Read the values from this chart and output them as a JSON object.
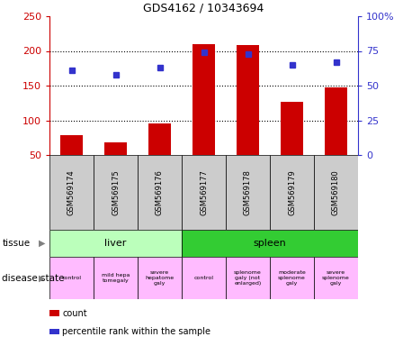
{
  "title": "GDS4162 / 10343694",
  "samples": [
    "GSM569174",
    "GSM569175",
    "GSM569176",
    "GSM569177",
    "GSM569178",
    "GSM569179",
    "GSM569180"
  ],
  "counts": [
    78,
    68,
    95,
    210,
    208,
    126,
    148
  ],
  "percentile_ranks": [
    61,
    58,
    63,
    74,
    73,
    65,
    67
  ],
  "ylim_left": [
    50,
    250
  ],
  "ylim_right": [
    0,
    100
  ],
  "yticks_left": [
    50,
    100,
    150,
    200,
    250
  ],
  "yticks_right": [
    0,
    25,
    50,
    75,
    100
  ],
  "bar_color": "#cc0000",
  "dot_color": "#3333cc",
  "tissue_groups": [
    {
      "label": "liver",
      "start": 0,
      "end": 3,
      "color": "#bbffbb"
    },
    {
      "label": "spleen",
      "start": 3,
      "end": 7,
      "color": "#33cc33"
    }
  ],
  "disease_states": [
    {
      "label": "control",
      "start": 0,
      "end": 1,
      "color": "#ffbbff"
    },
    {
      "label": "mild hepa\ntomegaly",
      "start": 1,
      "end": 2,
      "color": "#ffbbff"
    },
    {
      "label": "severe\nhepatome\ngaly",
      "start": 2,
      "end": 3,
      "color": "#ffbbff"
    },
    {
      "label": "control",
      "start": 3,
      "end": 4,
      "color": "#ffbbff"
    },
    {
      "label": "splenome\ngaly (not\nenlarged)",
      "start": 4,
      "end": 5,
      "color": "#ffbbff"
    },
    {
      "label": "moderate\nsplenome\ngaly",
      "start": 5,
      "end": 6,
      "color": "#ffbbff"
    },
    {
      "label": "severe\nsplenome\ngaly",
      "start": 6,
      "end": 7,
      "color": "#ffbbff"
    }
  ],
  "legend_items": [
    {
      "label": "count",
      "color": "#cc0000"
    },
    {
      "label": "percentile rank within the sample",
      "color": "#3333cc"
    }
  ],
  "bg_color": "#ffffff",
  "sample_bg_color": "#cccccc",
  "grid_yticks": [
    100,
    150,
    200
  ]
}
